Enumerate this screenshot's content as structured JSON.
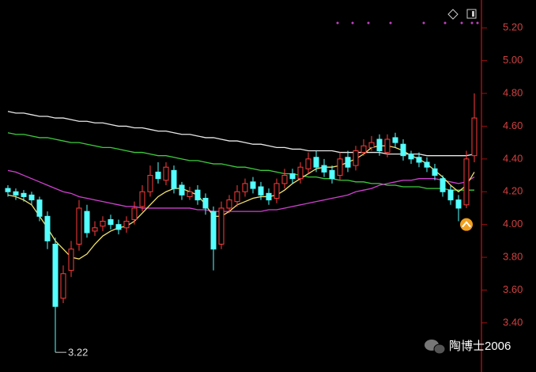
{
  "chart_data": {
    "type": "candlestick",
    "ylim": [
      3.1,
      5.37
    ],
    "yticks": [
      {
        "value": 3.4,
        "label": "3.40"
      },
      {
        "value": 3.6,
        "label": "3.60"
      },
      {
        "value": 3.8,
        "label": "3.80"
      },
      {
        "value": 4.0,
        "label": "4.00"
      },
      {
        "value": 4.2,
        "label": "4.20"
      },
      {
        "value": 4.4,
        "label": "4.40"
      },
      {
        "value": 4.6,
        "label": "4.60"
      },
      {
        "value": 4.8,
        "label": "4.80"
      },
      {
        "value": 5.0,
        "label": "5.00"
      },
      {
        "value": 5.2,
        "label": "5.20"
      }
    ],
    "up_color": "#ff3c3c",
    "down_color": "#54ffff",
    "open": [
      4.22,
      4.2,
      4.19,
      4.18,
      4.15,
      4.05,
      3.88,
      3.55,
      3.72,
      3.88,
      4.08,
      3.96,
      3.99,
      4.03,
      4.0,
      3.98,
      4.03,
      4.11,
      4.2,
      4.32,
      4.27,
      4.33,
      4.24,
      4.17,
      4.21,
      4.16,
      4.08,
      3.88,
      4.1,
      4.14,
      4.2,
      4.26,
      4.23,
      4.19,
      4.16,
      4.25,
      4.31,
      4.28,
      4.34,
      4.41,
      4.36,
      4.33,
      4.3,
      4.41,
      4.36,
      4.44,
      4.47,
      4.52,
      4.44,
      4.53,
      4.49,
      4.43,
      4.41,
      4.38,
      4.34,
      4.28,
      4.21,
      4.15,
      4.12,
      4.42
    ],
    "high": [
      4.24,
      4.22,
      4.21,
      4.2,
      4.17,
      4.08,
      3.92,
      3.75,
      3.9,
      4.15,
      4.12,
      4.02,
      4.05,
      4.06,
      4.03,
      4.05,
      4.14,
      4.24,
      4.36,
      4.38,
      4.38,
      4.36,
      4.26,
      4.23,
      4.24,
      4.19,
      4.11,
      4.14,
      4.18,
      4.24,
      4.28,
      4.29,
      4.26,
      4.22,
      4.28,
      4.34,
      4.34,
      4.38,
      4.44,
      4.45,
      4.4,
      4.36,
      4.44,
      4.45,
      4.48,
      4.52,
      4.54,
      4.55,
      4.55,
      4.56,
      4.52,
      4.45,
      4.44,
      4.41,
      4.37,
      4.3,
      4.24,
      4.18,
      4.45,
      4.8
    ],
    "low": [
      4.17,
      4.15,
      4.14,
      4.12,
      4.02,
      3.85,
      3.22,
      3.52,
      3.68,
      3.84,
      3.92,
      3.93,
      3.96,
      3.97,
      3.94,
      3.95,
      4.0,
      4.08,
      4.17,
      4.25,
      4.24,
      4.19,
      4.15,
      4.15,
      4.12,
      4.06,
      3.72,
      3.85,
      4.07,
      4.11,
      4.17,
      4.19,
      4.15,
      4.12,
      4.13,
      4.22,
      4.25,
      4.25,
      4.31,
      4.32,
      4.29,
      4.25,
      4.27,
      4.32,
      4.33,
      4.42,
      4.45,
      4.42,
      4.41,
      4.47,
      4.39,
      4.37,
      4.35,
      4.32,
      4.27,
      4.17,
      4.12,
      4.02,
      4.1,
      4.38
    ],
    "close": [
      4.2,
      4.18,
      4.17,
      4.15,
      4.05,
      3.9,
      3.5,
      3.7,
      3.85,
      4.1,
      3.95,
      3.98,
      4.02,
      4.0,
      3.97,
      4.02,
      4.1,
      4.2,
      4.3,
      4.28,
      4.35,
      4.22,
      4.18,
      4.2,
      4.15,
      4.1,
      3.85,
      4.1,
      4.15,
      4.2,
      4.25,
      4.22,
      4.18,
      4.15,
      4.25,
      4.3,
      4.28,
      4.35,
      4.4,
      4.35,
      4.32,
      4.28,
      4.4,
      4.35,
      4.45,
      4.48,
      4.5,
      4.45,
      4.52,
      4.5,
      4.42,
      4.4,
      4.38,
      4.35,
      4.3,
      4.2,
      4.15,
      4.1,
      4.4,
      4.65
    ],
    "lines": [
      {
        "color": "#e8e8e8",
        "values": [
          4.69,
          4.68,
          4.68,
          4.67,
          4.66,
          4.66,
          4.65,
          4.65,
          4.64,
          4.63,
          4.63,
          4.62,
          4.62,
          4.61,
          4.6,
          4.6,
          4.59,
          4.59,
          4.58,
          4.57,
          4.57,
          4.56,
          4.55,
          4.55,
          4.54,
          4.53,
          4.53,
          4.52,
          4.51,
          4.51,
          4.5,
          4.49,
          4.49,
          4.48,
          4.47,
          4.47,
          4.46,
          4.46,
          4.45,
          4.45,
          4.45,
          4.45,
          4.44,
          4.44,
          4.44,
          4.44,
          4.44,
          4.44,
          4.43,
          4.43,
          4.43,
          4.43,
          4.43,
          4.42,
          4.42,
          4.42,
          4.42,
          4.42,
          4.42,
          4.43
        ]
      },
      {
        "color": "#3ccc3c",
        "values": [
          4.56,
          4.55,
          4.55,
          4.54,
          4.53,
          4.53,
          4.52,
          4.51,
          4.5,
          4.5,
          4.49,
          4.48,
          4.47,
          4.47,
          4.46,
          4.45,
          4.44,
          4.44,
          4.43,
          4.42,
          4.42,
          4.41,
          4.4,
          4.39,
          4.39,
          4.38,
          4.37,
          4.37,
          4.36,
          4.35,
          4.35,
          4.34,
          4.33,
          4.33,
          4.32,
          4.31,
          4.31,
          4.3,
          4.29,
          4.29,
          4.28,
          4.28,
          4.27,
          4.27,
          4.26,
          4.26,
          4.25,
          4.25,
          4.24,
          4.24,
          4.23,
          4.23,
          4.23,
          4.22,
          4.22,
          4.22,
          4.21,
          4.21,
          4.21,
          4.21
        ]
      },
      {
        "color": "#d040d0",
        "values": [
          4.33,
          4.32,
          4.3,
          4.28,
          4.26,
          4.24,
          4.22,
          4.2,
          4.19,
          4.17,
          4.16,
          4.15,
          4.14,
          4.13,
          4.12,
          4.11,
          4.11,
          4.1,
          4.1,
          4.1,
          4.1,
          4.1,
          4.1,
          4.1,
          4.09,
          4.09,
          4.08,
          4.08,
          4.08,
          4.08,
          4.08,
          4.08,
          4.08,
          4.09,
          4.09,
          4.1,
          4.11,
          4.12,
          4.13,
          4.14,
          4.15,
          4.16,
          4.17,
          4.18,
          4.2,
          4.21,
          4.22,
          4.24,
          4.25,
          4.26,
          4.27,
          4.27,
          4.28,
          4.28,
          4.28,
          4.27,
          4.26,
          4.25,
          4.26,
          4.29
        ]
      },
      {
        "color": "#f0e070",
        "values": [
          4.18,
          4.17,
          4.15,
          4.12,
          4.05,
          3.98,
          3.9,
          3.85,
          3.8,
          3.79,
          3.82,
          3.88,
          3.93,
          3.96,
          3.98,
          3.99,
          4.02,
          4.07,
          4.12,
          4.17,
          4.2,
          4.22,
          4.22,
          4.2,
          4.18,
          4.12,
          4.05,
          4.05,
          4.08,
          4.12,
          4.14,
          4.16,
          4.17,
          4.17,
          4.18,
          4.21,
          4.25,
          4.28,
          4.31,
          4.34,
          4.35,
          4.35,
          4.36,
          4.38,
          4.4,
          4.43,
          4.47,
          4.48,
          4.48,
          4.47,
          4.45,
          4.42,
          4.4,
          4.37,
          4.33,
          4.29,
          4.24,
          4.2,
          4.24,
          4.32
        ]
      }
    ],
    "annotation": "3.22",
    "watermark": "陶博士2006"
  }
}
